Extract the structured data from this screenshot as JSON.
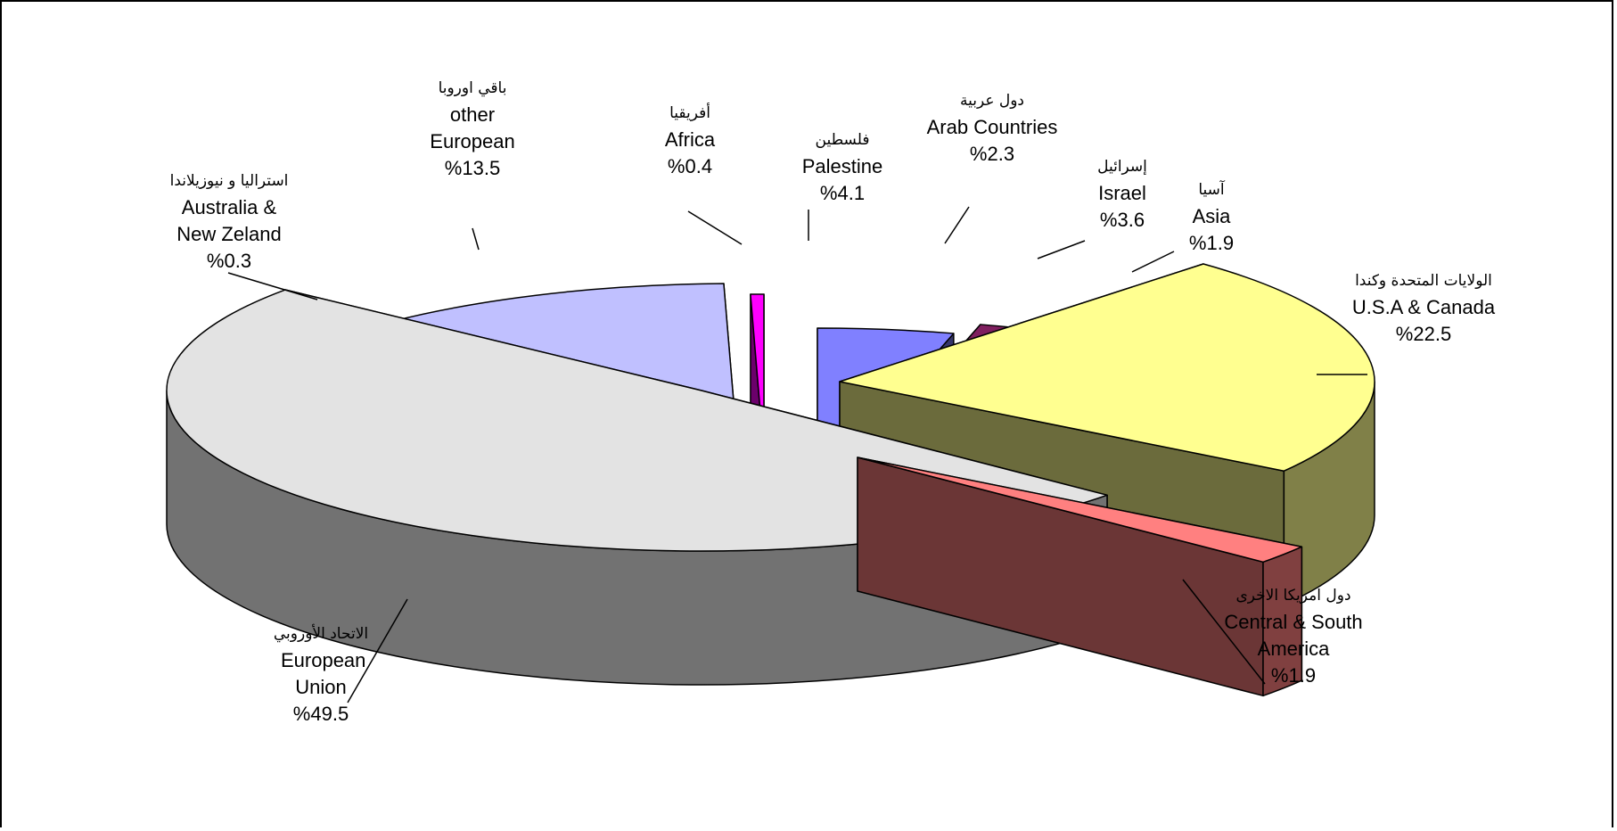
{
  "chart_data": {
    "type": "pie",
    "variant": "3d-exploded",
    "slices": [
      {
        "key": "palestine",
        "label_ar": "فلسطين",
        "label_en": "Palestine",
        "pct_text": "%4.1",
        "value": 4.1,
        "color": "#8080FF"
      },
      {
        "key": "arab",
        "label_ar": "دول عربية",
        "label_en": "Arab Countries",
        "pct_text": "%2.3",
        "value": 2.3,
        "color": "#7F1F5F"
      },
      {
        "key": "israel",
        "label_ar": "إسرائيل",
        "label_en": "Israel",
        "pct_text": "%3.6",
        "value": 3.6,
        "color": "#FFFFC0"
      },
      {
        "key": "asia",
        "label_ar": "آسيا",
        "label_en": "Asia",
        "pct_text": "%1.9",
        "value": 1.9,
        "color": "#A0E0E0"
      },
      {
        "key": "usa",
        "label_ar": "الولايات المتحدة وكندا",
        "label_en": "U.S.A & Canada",
        "pct_text": "%22.5",
        "value": 22.5,
        "color": "#FFFF90"
      },
      {
        "key": "america",
        "label_ar": "دول امريكا الاخرى",
        "label_en": "Central & South America",
        "pct_text": "%1.9",
        "value": 1.9,
        "color": "#FF8080"
      },
      {
        "key": "eu",
        "label_ar": "الاتحاد الأوروبي",
        "label_en": "European Union",
        "pct_text": "%49.5",
        "value": 49.5,
        "color": "#E3E3E3"
      },
      {
        "key": "aus",
        "label_ar": "استراليا و نيوزيلاندا",
        "label_en": "Australia & New Zeland",
        "pct_text": "%0.3",
        "value": 0.3,
        "color": "#707090"
      },
      {
        "key": "oeu",
        "label_ar": "باقي اوروبا",
        "label_en": "other European",
        "pct_text": "%13.5",
        "value": 13.5,
        "color": "#C0C0FF"
      },
      {
        "key": "africa",
        "label_ar": "أفريقيا",
        "label_en": "Africa",
        "pct_text": "%0.4",
        "value": 0.4,
        "color": "#FF00FF"
      }
    ]
  }
}
